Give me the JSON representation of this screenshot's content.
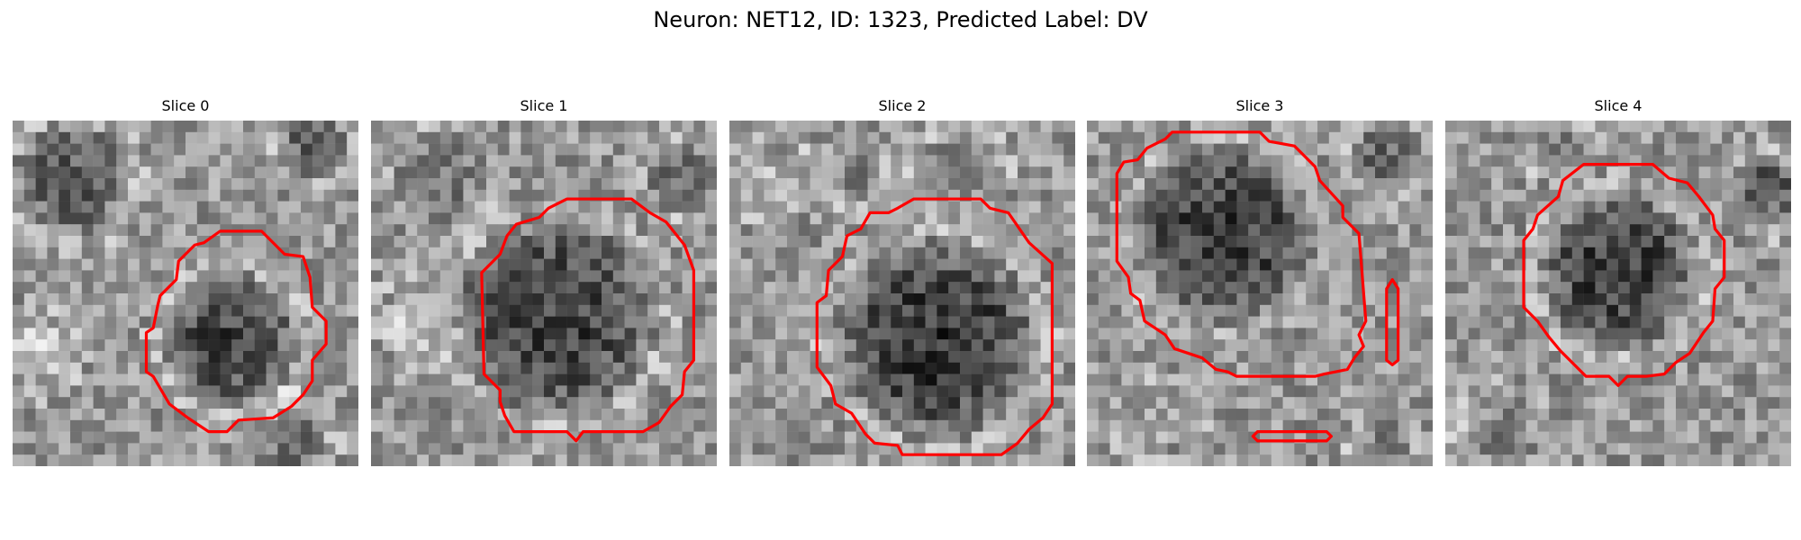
{
  "figure": {
    "title": "Neuron: NET12, ID: 1323, Predicted Label: DV"
  },
  "colors": {
    "contour": "#ff0000"
  },
  "panels": [
    {
      "title": "Slice 0",
      "cell": "round dark cell body, lower right, outlined in red"
    },
    {
      "title": "Slice 1",
      "cell": "large dark cell body, center, outlined in red"
    },
    {
      "title": "Slice 2",
      "cell": "large dark cell body, center, outlined in red"
    },
    {
      "title": "Slice 3",
      "cell": "dark cell body, upper left, outlined in red; two small extra red contours"
    },
    {
      "title": "Slice 4",
      "cell": "dark cell body, center, outlined in red"
    }
  ]
}
